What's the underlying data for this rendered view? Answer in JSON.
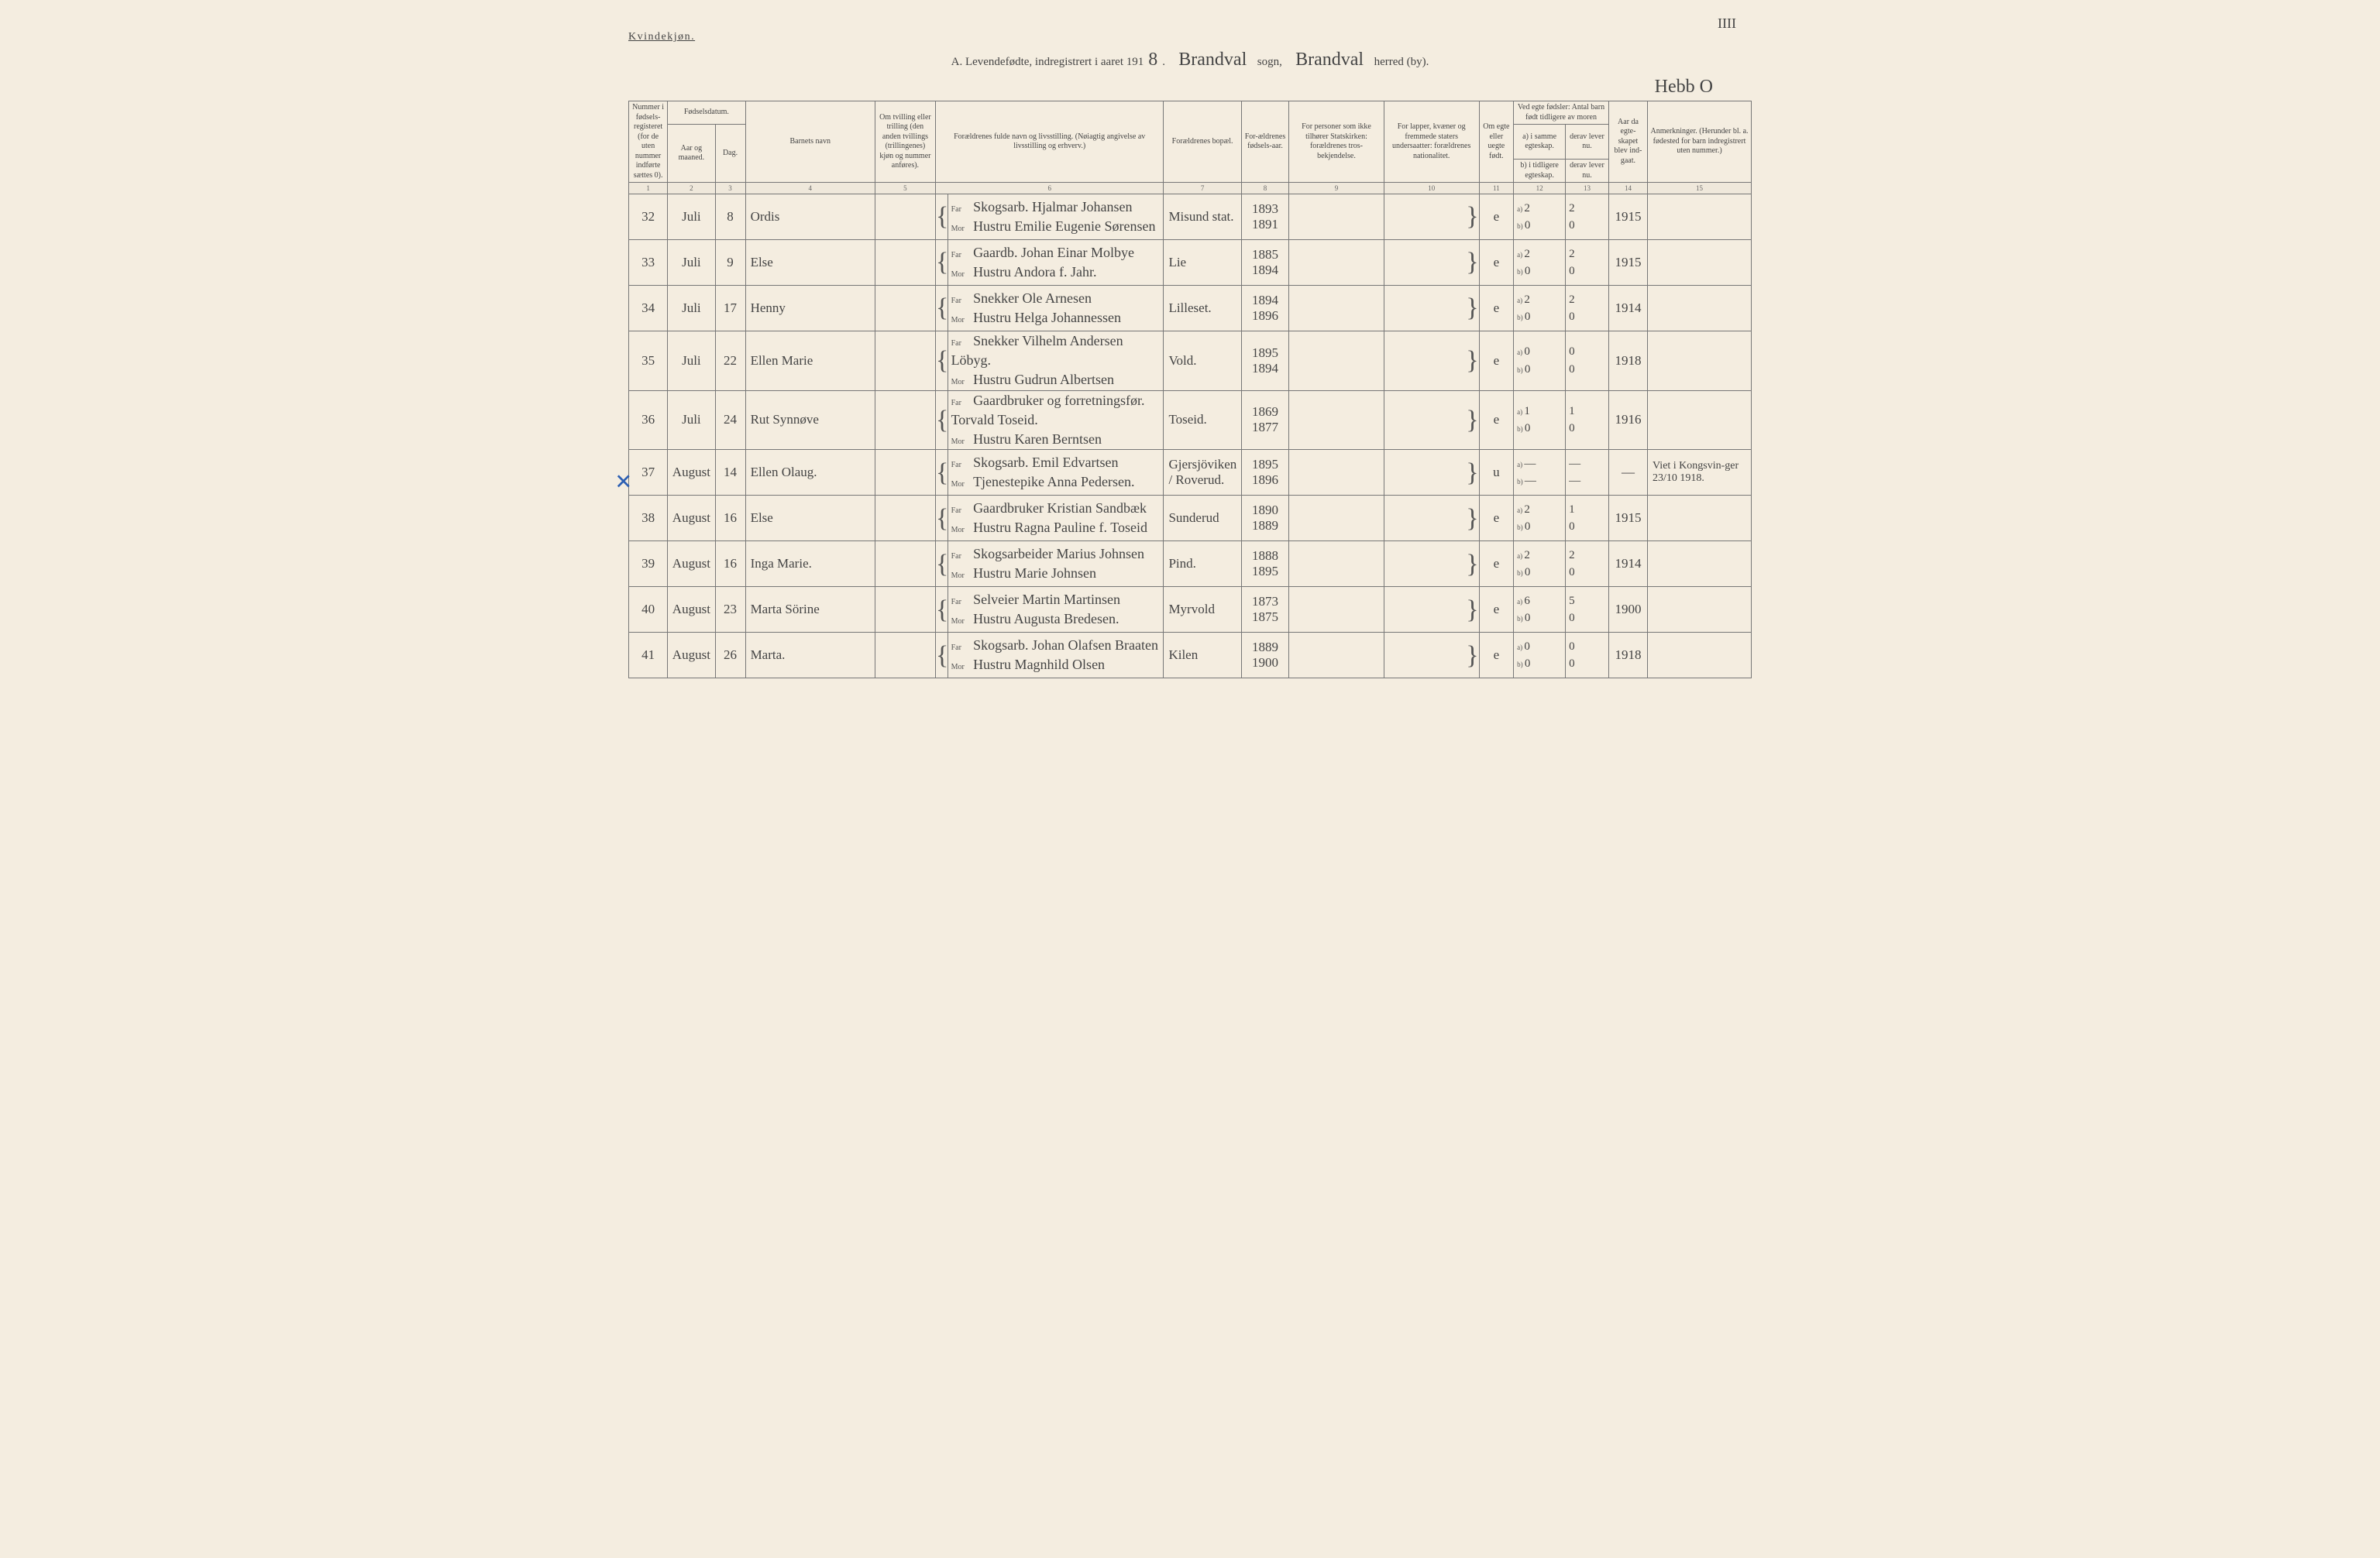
{
  "page_number_top": "IIII",
  "gender_label": "Kvindekjøn.",
  "title": {
    "prefix": "A. Levendefødte, indregistrert i aaret 191",
    "year_digit": "8",
    "sogn_hand": "Brandval",
    "sogn_label": "sogn,",
    "herred_hand": "Brandval",
    "herred_label": "herred (by)."
  },
  "signature": "Hebb O",
  "headers": {
    "c1": "Nummer i fødsels-registeret (for de uten nummer indførte sættes 0).",
    "c2": "Fødselsdatum.",
    "c2a": "Aar og maaned.",
    "c2b": "Dag.",
    "c4": "Barnets navn",
    "c5": "Om tvilling eller trilling (den anden tvillings (trillingenes) kjøn og nummer anføres).",
    "c6": "Forældrenes fulde navn og livsstilling. (Nøiagtig angivelse av livsstilling og erhverv.)",
    "c7": "Forældrenes bopæl.",
    "c8": "For-ældrenes fødsels-aar.",
    "c9": "For personer som ikke tilhører Statskirken: forældrenes tros-bekjendelse.",
    "c10": "For lapper, kvæner og fremmede staters undersaatter: forældrenes nationalitet.",
    "c11": "Om egte eller uegte født.",
    "c12_top": "Ved egte fødsler: Antal barn født tidligere av moren",
    "c12a": "a) i samme egteskap.",
    "c12b": "b) i tidligere egteskap.",
    "c13a": "derav lever nu.",
    "c13b": "derav lever nu.",
    "c14": "Aar da egte-skapet blev ind-gaat.",
    "c15": "Anmerkninger. (Herunder bl. a. fødested for barn indregistrert uten nummer.)"
  },
  "colnums": [
    "1",
    "2",
    "3",
    "4",
    "5",
    "6",
    "7",
    "8",
    "9",
    "10",
    "11",
    "12",
    "13",
    "14",
    "15"
  ],
  "entries": [
    {
      "num": "32",
      "month": "Juli",
      "day": "8",
      "name": "Ordis",
      "far": "Skogsarb. Hjalmar Johansen",
      "mor": "Hustru Emilie Eugenie Sørensen",
      "bopal": "Misund stat.",
      "far_yr": "1893",
      "mor_yr": "1891",
      "egte": "e",
      "a12": "2",
      "a13": "2",
      "b12": "0",
      "b13": "0",
      "yr": "1915",
      "anm": ""
    },
    {
      "num": "33",
      "month": "Juli",
      "day": "9",
      "name": "Else",
      "far": "Gaardb. Johan Einar Molbye",
      "mor": "Hustru Andora f. Jahr.",
      "bopal": "Lie",
      "far_yr": "1885",
      "mor_yr": "1894",
      "egte": "e",
      "a12": "2",
      "a13": "2",
      "b12": "0",
      "b13": "0",
      "yr": "1915",
      "anm": ""
    },
    {
      "num": "34",
      "month": "Juli",
      "day": "17",
      "name": "Henny",
      "far": "Snekker Ole Arnesen",
      "mor": "Hustru Helga Johannessen",
      "bopal": "Lilleset.",
      "far_yr": "1894",
      "mor_yr": "1896",
      "egte": "e",
      "a12": "2",
      "a13": "2",
      "b12": "0",
      "b13": "0",
      "yr": "1914",
      "anm": ""
    },
    {
      "num": "35",
      "month": "Juli",
      "day": "22",
      "name": "Ellen Marie",
      "far": "Snekker Vilhelm Andersen Löbyg.",
      "mor": "Hustru Gudrun Albertsen",
      "bopal": "Vold.",
      "far_yr": "1895",
      "mor_yr": "1894",
      "egte": "e",
      "a12": "0",
      "a13": "0",
      "b12": "0",
      "b13": "0",
      "yr": "1918",
      "anm": ""
    },
    {
      "num": "36",
      "month": "Juli",
      "day": "24",
      "name": "Rut Synnøve",
      "far": "Gaardbruker og forretningsfør. Torvald Toseid.",
      "mor": "Hustru Karen Berntsen",
      "bopal": "Toseid.",
      "far_yr": "1869",
      "mor_yr": "1877",
      "egte": "e",
      "a12": "1",
      "a13": "1",
      "b12": "0",
      "b13": "0",
      "yr": "1916",
      "anm": ""
    },
    {
      "num": "37",
      "month": "August",
      "day": "14",
      "name": "Ellen Olaug.",
      "far": "Skogsarb. Emil Edvartsen",
      "mor": "Tjenestepike Anna Pedersen.",
      "bopal": "Gjersjöviken / Roverud.",
      "far_yr": "1895",
      "mor_yr": "1896",
      "egte": "u",
      "a12": "—",
      "a13": "—",
      "b12": "—",
      "b13": "—",
      "yr": "—",
      "anm": "Viet i Kongsvin-ger 23/10 1918.",
      "cross": true
    },
    {
      "num": "38",
      "month": "August",
      "day": "16",
      "name": "Else",
      "far": "Gaardbruker Kristian Sandbæk",
      "mor": "Hustru Ragna Pauline f. Toseid",
      "bopal": "Sunderud",
      "far_yr": "1890",
      "mor_yr": "1889",
      "egte": "e",
      "a12": "2",
      "a13": "1",
      "b12": "0",
      "b13": "0",
      "yr": "1915",
      "anm": ""
    },
    {
      "num": "39",
      "month": "August",
      "day": "16",
      "name": "Inga Marie.",
      "far": "Skogsarbeider Marius Johnsen",
      "mor": "Hustru Marie Johnsen",
      "bopal": "Pind.",
      "far_yr": "1888",
      "mor_yr": "1895",
      "egte": "e",
      "a12": "2",
      "a13": "2",
      "b12": "0",
      "b13": "0",
      "yr": "1914",
      "anm": ""
    },
    {
      "num": "40",
      "month": "August",
      "day": "23",
      "name": "Marta Sörine",
      "far": "Selveier Martin Martinsen",
      "mor": "Hustru Augusta Bredesen.",
      "bopal": "Myrvold",
      "far_yr": "1873",
      "mor_yr": "1875",
      "egte": "e",
      "a12": "6",
      "a13": "5",
      "b12": "0",
      "b13": "0",
      "yr": "1900",
      "anm": ""
    },
    {
      "num": "41",
      "month": "August",
      "day": "26",
      "name": "Marta.",
      "far": "Skogsarb. Johan Olafsen Braaten",
      "mor": "Hustru Magnhild Olsen",
      "bopal": "Kilen",
      "far_yr": "1889",
      "mor_yr": "1900",
      "egte": "e",
      "a12": "0",
      "a13": "0",
      "b12": "0",
      "b13": "0",
      "yr": "1918",
      "anm": ""
    }
  ]
}
